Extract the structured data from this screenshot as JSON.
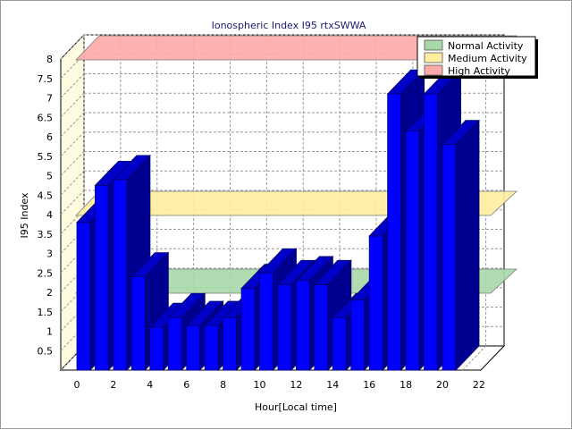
{
  "chart_data": {
    "type": "bar",
    "title": "Ionospheric Index I95 rtxSWWA",
    "xlabel": "Hour[Local time]",
    "ylabel": "I95 Index",
    "ylim": [
      0,
      8
    ],
    "yticks": [
      0.5,
      1,
      1.5,
      2,
      2.5,
      3,
      3.5,
      4,
      4.5,
      5,
      5.5,
      6,
      6.5,
      7,
      7.5,
      8
    ],
    "xticks": [
      0,
      2,
      4,
      6,
      8,
      10,
      12,
      14,
      16,
      18,
      20,
      22
    ],
    "categories": [
      0,
      1,
      2,
      3,
      4,
      5,
      6,
      7,
      8,
      9,
      10,
      11,
      12,
      13,
      14,
      15,
      16,
      17,
      18,
      19,
      20,
      21,
      22,
      23
    ],
    "series": [
      {
        "values": [
          3.8,
          4.75,
          4.9,
          2.4,
          1.1,
          1.35,
          1.15,
          1.15,
          1.35,
          2.1,
          2.5,
          2.2,
          2.3,
          2.2,
          1.35,
          1.8,
          3.45,
          7.1,
          6.15,
          7.1,
          5.8,
          null,
          null,
          null
        ],
        "color": "#0000ff"
      }
    ],
    "grid": true,
    "legend": {
      "position": "top-right",
      "entries": [
        {
          "label": "Normal Activity",
          "color": "#a8d8a8",
          "level": 2
        },
        {
          "label": "Medium Activity",
          "color": "#ffeea0",
          "level": 4
        },
        {
          "label": "High Activity",
          "color": "#ffaaaa",
          "level": 8
        }
      ]
    }
  }
}
